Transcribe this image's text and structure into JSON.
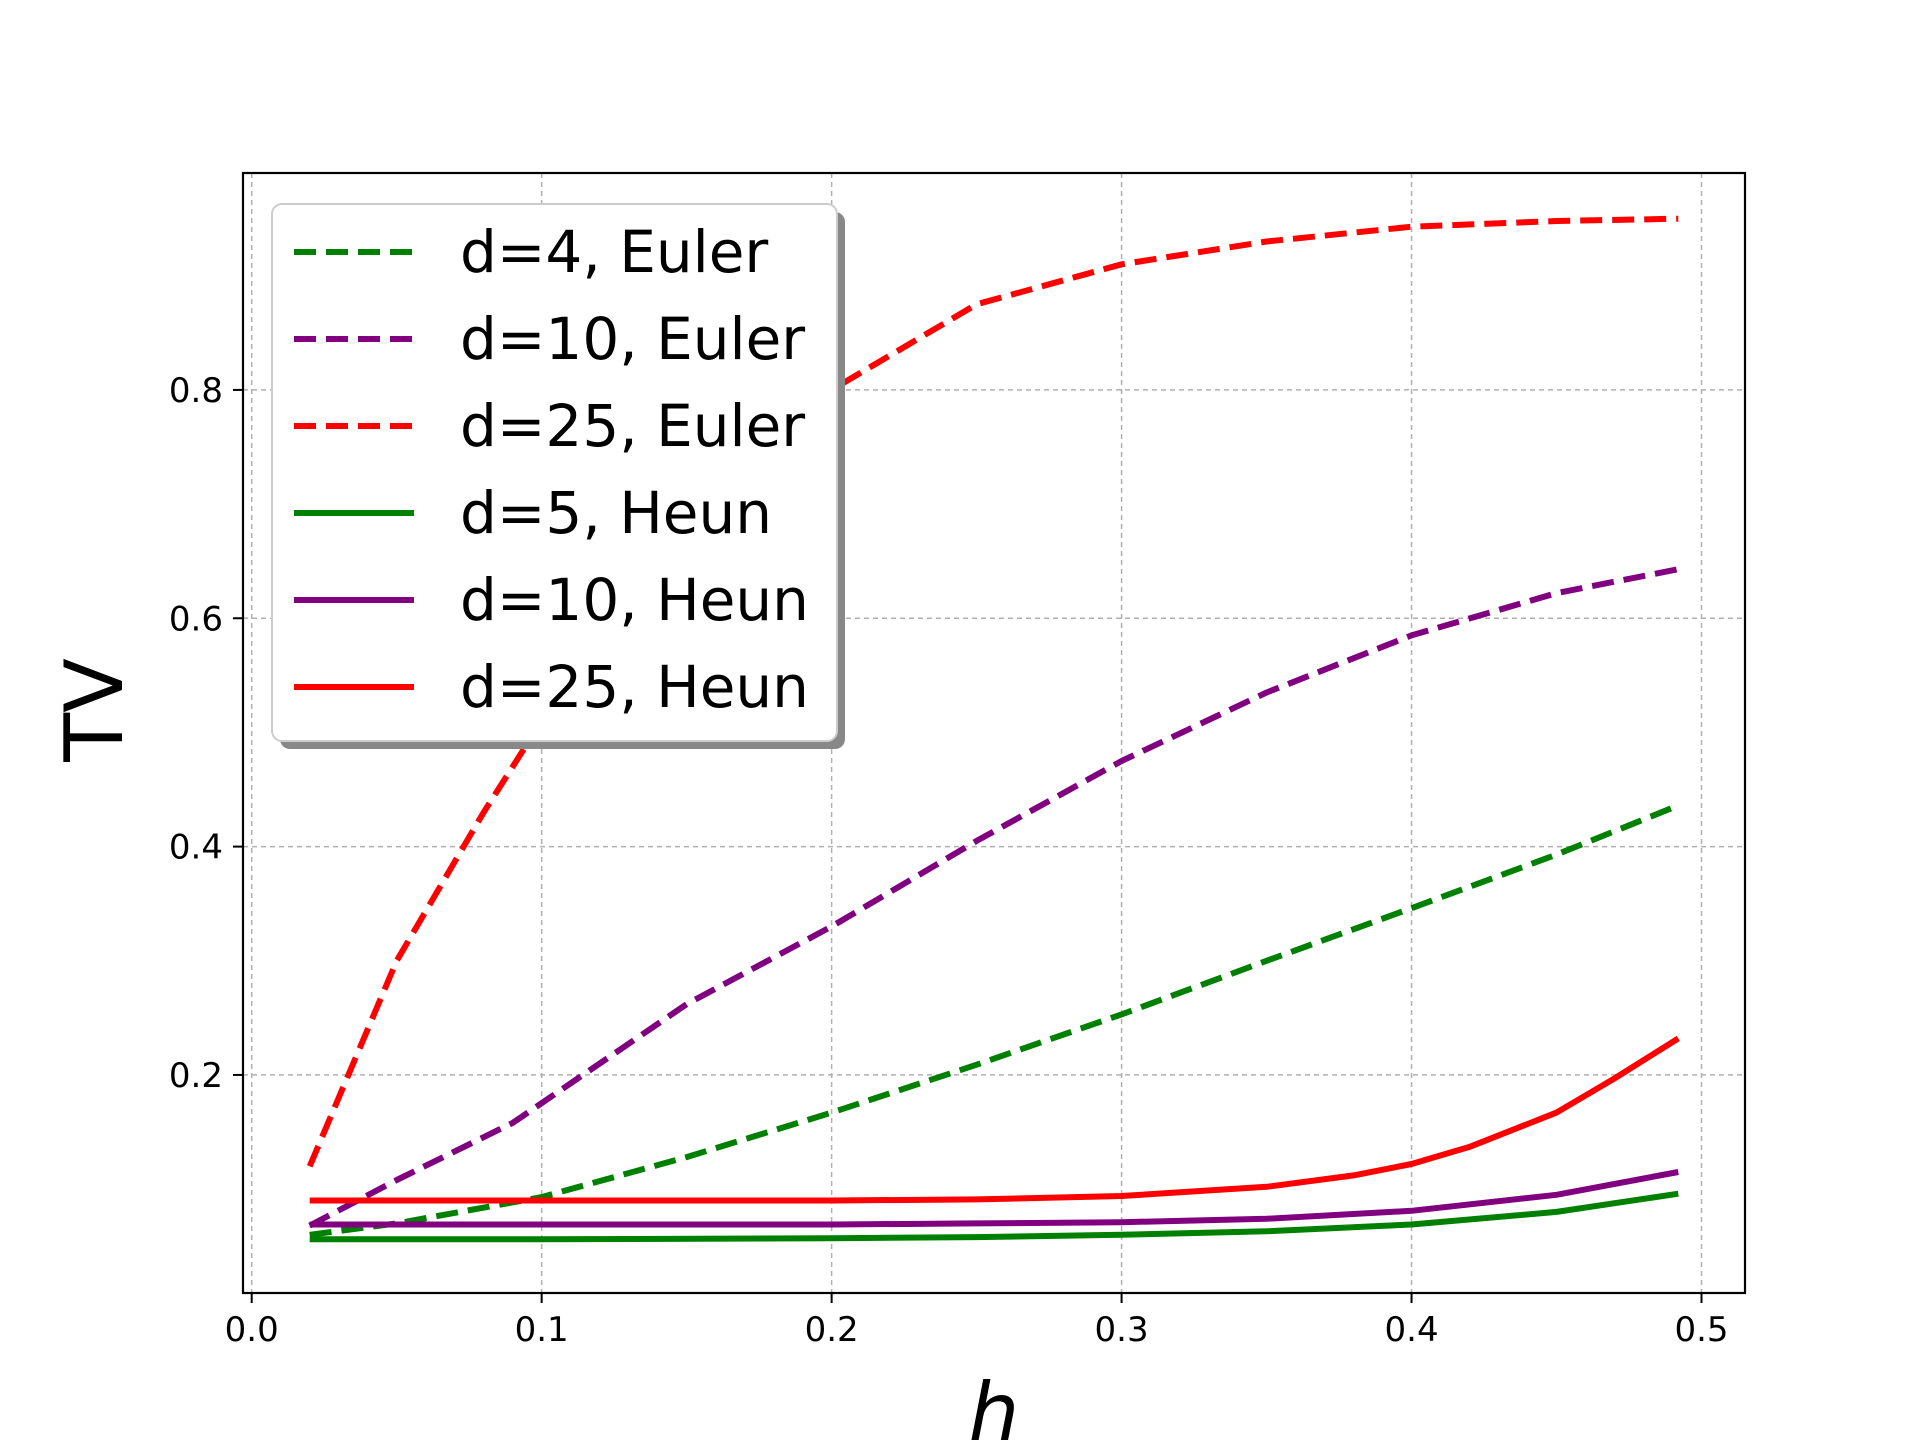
{
  "chart_data": {
    "type": "line",
    "title": "",
    "xlabel": "h",
    "ylabel": "TV",
    "xlim": [
      -0.003,
      0.515
    ],
    "ylim": [
      0.009,
      0.99
    ],
    "xticks": [
      0.0,
      0.1,
      0.2,
      0.3,
      0.4,
      0.5
    ],
    "xtick_labels": [
      "0.0",
      "0.1",
      "0.2",
      "0.3",
      "0.4",
      "0.5"
    ],
    "yticks": [
      0.2,
      0.4,
      0.6,
      0.8
    ],
    "ytick_labels": [
      "0.2",
      "0.4",
      "0.6",
      "0.8"
    ],
    "grid": true,
    "legend_position": "upper-left",
    "series": [
      {
        "name": "d=4, Euler",
        "color": "#008000",
        "style": "dashed",
        "x": [
          0.02,
          0.05,
          0.1,
          0.15,
          0.2,
          0.25,
          0.3,
          0.35,
          0.4,
          0.45,
          0.492
        ],
        "y": [
          0.06,
          0.07,
          0.093,
          0.128,
          0.167,
          0.209,
          0.253,
          0.3,
          0.346,
          0.393,
          0.436
        ]
      },
      {
        "name": "d=10, Euler",
        "color": "#800080",
        "style": "dashed",
        "x": [
          0.02,
          0.05,
          0.09,
          0.12,
          0.15,
          0.2,
          0.25,
          0.3,
          0.35,
          0.4,
          0.45,
          0.492
        ],
        "y": [
          0.068,
          0.108,
          0.158,
          0.21,
          0.262,
          0.33,
          0.405,
          0.475,
          0.535,
          0.585,
          0.622,
          0.643
        ]
      },
      {
        "name": "d=25, Euler",
        "color": "#ff0000",
        "style": "dashed",
        "x": [
          0.02,
          0.05,
          0.08,
          0.1,
          0.13,
          0.16,
          0.2,
          0.25,
          0.3,
          0.35,
          0.4,
          0.45,
          0.492
        ],
        "y": [
          0.12,
          0.3,
          0.43,
          0.51,
          0.6,
          0.72,
          0.8,
          0.875,
          0.91,
          0.93,
          0.943,
          0.948,
          0.95
        ]
      },
      {
        "name": "d=5, Heun",
        "color": "#008000",
        "style": "solid",
        "x": [
          0.02,
          0.1,
          0.2,
          0.25,
          0.3,
          0.35,
          0.4,
          0.45,
          0.492
        ],
        "y": [
          0.056,
          0.056,
          0.057,
          0.058,
          0.06,
          0.063,
          0.069,
          0.08,
          0.096
        ]
      },
      {
        "name": "d=10, Heun",
        "color": "#800080",
        "style": "solid",
        "x": [
          0.02,
          0.1,
          0.2,
          0.25,
          0.3,
          0.35,
          0.4,
          0.45,
          0.492
        ],
        "y": [
          0.069,
          0.069,
          0.069,
          0.07,
          0.071,
          0.074,
          0.081,
          0.095,
          0.115
        ]
      },
      {
        "name": "d=25, Heun",
        "color": "#ff0000",
        "style": "solid",
        "x": [
          0.02,
          0.1,
          0.2,
          0.25,
          0.3,
          0.35,
          0.38,
          0.4,
          0.42,
          0.45,
          0.47,
          0.492
        ],
        "y": [
          0.09,
          0.09,
          0.09,
          0.091,
          0.094,
          0.102,
          0.112,
          0.122,
          0.137,
          0.167,
          0.197,
          0.232
        ]
      }
    ]
  }
}
